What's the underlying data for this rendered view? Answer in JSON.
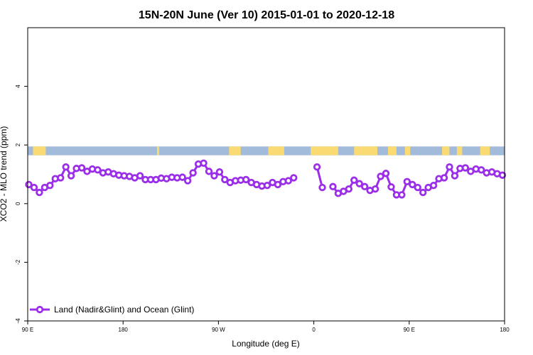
{
  "chart_data": {
    "type": "line",
    "title": "15N-20N June (Ver 10)   2015-01-01 to 2020-12-18",
    "xlabel": "Longitude (deg E)",
    "ylabel": "XCO2 - MLO trend (ppm)",
    "xlim": [
      90,
      540
    ],
    "ylim": [
      -4,
      6
    ],
    "x_ticks": [
      {
        "value": 90,
        "label": "90 E"
      },
      {
        "value": 180,
        "label": "180"
      },
      {
        "value": 270,
        "label": "90 W"
      },
      {
        "value": 360,
        "label": "0"
      },
      {
        "value": 450,
        "label": "90 E"
      },
      {
        "value": 540,
        "label": "180"
      }
    ],
    "y_ticks": [
      {
        "value": -4,
        "label": "-4"
      },
      {
        "value": -2,
        "label": "-2"
      },
      {
        "value": 0,
        "label": "0"
      },
      {
        "value": 2,
        "label": "2"
      },
      {
        "value": 4,
        "label": "4"
      }
    ],
    "grid": false,
    "legend_position": "bottom-left",
    "band": {
      "y_from": 1.65,
      "y_to": 1.95,
      "ocean_color": "#a3bbdb",
      "land_color": "#fada72"
    },
    "land_segments": [
      [
        95,
        107
      ],
      [
        212,
        214
      ],
      [
        280,
        291
      ],
      [
        317,
        332
      ],
      [
        357,
        383
      ],
      [
        398,
        420
      ],
      [
        430,
        438
      ],
      [
        446,
        451
      ],
      [
        481,
        488
      ],
      [
        495,
        500
      ],
      [
        517,
        526
      ]
    ],
    "series": [
      {
        "name": "Land (Nadir&Glint) and Ocean (Glint)",
        "color": "#9b2ee8",
        "segments": [
          [
            [
              91,
              0.65
            ],
            [
              96,
              0.55
            ],
            [
              101,
              0.38
            ],
            [
              106,
              0.55
            ],
            [
              111,
              0.62
            ],
            [
              116,
              0.85
            ],
            [
              121,
              0.88
            ],
            [
              126,
              1.25
            ],
            [
              131,
              0.95
            ],
            [
              136,
              1.2
            ],
            [
              141,
              1.22
            ],
            [
              146,
              1.1
            ],
            [
              151,
              1.18
            ],
            [
              156,
              1.15
            ],
            [
              161,
              1.05
            ],
            [
              166,
              1.08
            ],
            [
              171,
              1.02
            ],
            [
              176,
              0.97
            ],
            [
              181,
              0.95
            ],
            [
              186,
              0.93
            ],
            [
              191,
              0.88
            ],
            [
              196,
              0.95
            ],
            [
              201,
              0.82
            ],
            [
              206,
              0.82
            ],
            [
              211,
              0.82
            ],
            [
              216,
              0.87
            ],
            [
              221,
              0.85
            ],
            [
              226,
              0.9
            ],
            [
              231,
              0.88
            ],
            [
              236,
              0.9
            ],
            [
              241,
              0.78
            ],
            [
              246,
              1.05
            ],
            [
              251,
              1.35
            ],
            [
              256,
              1.38
            ],
            [
              261,
              1.1
            ],
            [
              266,
              0.95
            ],
            [
              271,
              1.08
            ],
            [
              276,
              0.82
            ],
            [
              281,
              0.72
            ],
            [
              286,
              0.78
            ],
            [
              291,
              0.8
            ],
            [
              296,
              0.82
            ],
            [
              301,
              0.72
            ],
            [
              306,
              0.65
            ],
            [
              311,
              0.6
            ],
            [
              316,
              0.62
            ],
            [
              321,
              0.72
            ],
            [
              326,
              0.65
            ],
            [
              331,
              0.75
            ],
            [
              336,
              0.78
            ],
            [
              341,
              0.88
            ]
          ],
          [
            [
              363,
              1.25
            ],
            [
              368,
              0.55
            ]
          ],
          [
            [
              378,
              0.58
            ],
            [
              383,
              0.35
            ],
            [
              388,
              0.42
            ],
            [
              393,
              0.5
            ],
            [
              398,
              0.8
            ],
            [
              403,
              0.68
            ],
            [
              408,
              0.58
            ],
            [
              413,
              0.45
            ],
            [
              418,
              0.5
            ],
            [
              423,
              0.93
            ],
            [
              428,
              1.03
            ],
            [
              433,
              0.57
            ],
            [
              438,
              0.3
            ],
            [
              443,
              0.3
            ],
            [
              448,
              0.75
            ],
            [
              453,
              0.65
            ],
            [
              458,
              0.55
            ],
            [
              463,
              0.38
            ],
            [
              468,
              0.55
            ],
            [
              473,
              0.62
            ],
            [
              478,
              0.85
            ],
            [
              483,
              0.88
            ],
            [
              488,
              1.25
            ],
            [
              493,
              0.95
            ],
            [
              498,
              1.2
            ],
            [
              503,
              1.22
            ],
            [
              508,
              1.1
            ],
            [
              513,
              1.18
            ],
            [
              518,
              1.15
            ],
            [
              523,
              1.05
            ],
            [
              528,
              1.08
            ],
            [
              533,
              1.02
            ],
            [
              538,
              0.97
            ]
          ]
        ]
      }
    ]
  }
}
